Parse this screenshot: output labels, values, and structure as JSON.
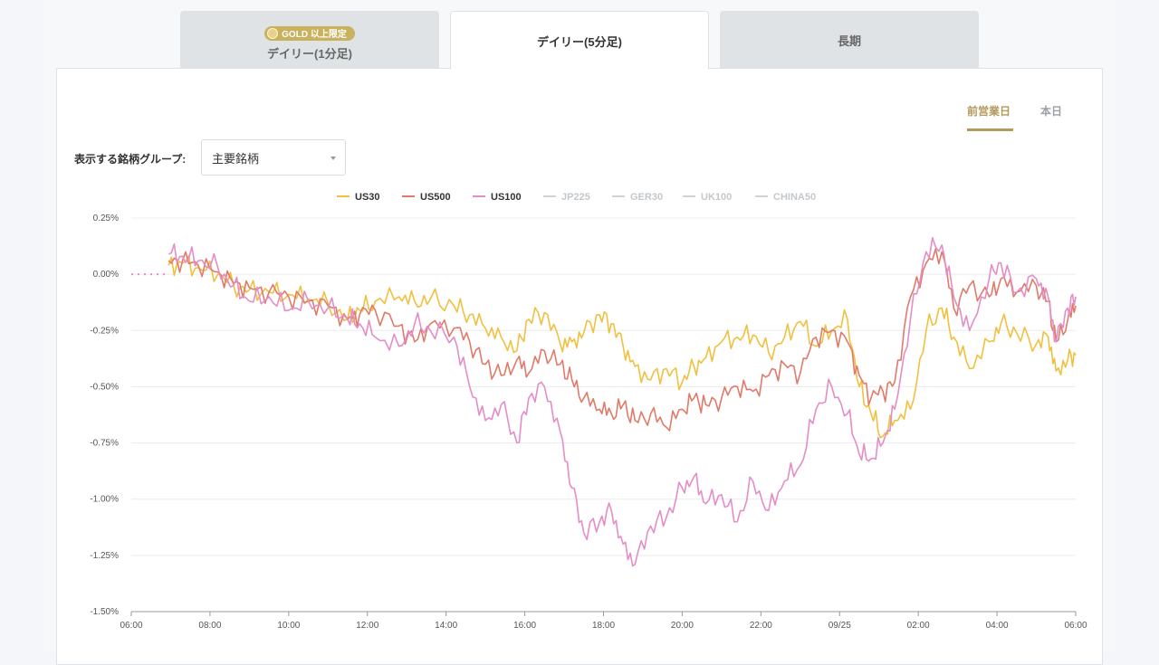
{
  "tabs": [
    {
      "label": "デイリー(1分足)",
      "badge": "GOLD 以上限定",
      "active": false
    },
    {
      "label": "デイリー(5分足)",
      "active": true
    },
    {
      "label": "長期",
      "active": false
    }
  ],
  "day_toggle": {
    "previous": "前営業日",
    "today": "本日",
    "selected": "previous"
  },
  "group_select": {
    "label": "表示する銘柄グループ:",
    "value": "主要銘柄"
  },
  "colors": {
    "gold": "#c9b15d",
    "accent": "#b3995a"
  },
  "chart_data": {
    "type": "line",
    "legend_position": "top",
    "grid": true,
    "ylim": [
      -1.5,
      0.25
    ],
    "yticks": [
      "0.25%",
      "0.00%",
      "-0.25%",
      "-0.50%",
      "-0.75%",
      "-1.00%",
      "-1.25%",
      "-1.50%"
    ],
    "ytick_values": [
      0.25,
      0,
      -0.25,
      -0.5,
      -0.75,
      -1.0,
      -1.25,
      -1.5
    ],
    "xticks": [
      "06:00",
      "08:00",
      "10:00",
      "12:00",
      "14:00",
      "16:00",
      "18:00",
      "20:00",
      "22:00",
      "09/25",
      "02:00",
      "04:00",
      "06:00"
    ],
    "xlim": [
      0,
      24
    ],
    "series": [
      {
        "name": "US30",
        "color": "#f0c040",
        "visible": true,
        "x": [
          0.95,
          1.3,
          1.7,
          2.2,
          2.6,
          3.0,
          3.5,
          4.0,
          4.5,
          5.0,
          5.5,
          5.8,
          6.2,
          6.8,
          7.2,
          7.6,
          8.2,
          8.6,
          9.0,
          9.4,
          9.8,
          10.1,
          10.5,
          10.9,
          11.2,
          11.5,
          11.9,
          12.2,
          12.5,
          12.8,
          13.2,
          13.6,
          14.0,
          14.3,
          14.6,
          15.0,
          15.4,
          15.8,
          16.2,
          16.6,
          17.0,
          17.4,
          17.8,
          18.2,
          18.5,
          18.8,
          19.1,
          19.4,
          19.8,
          20.2,
          20.6,
          20.9,
          21.3,
          21.8,
          22.1,
          22.5,
          23.0,
          23.3,
          23.5,
          23.8,
          24.0
        ],
        "y": [
          0.04,
          0.05,
          0.03,
          0.0,
          -0.05,
          -0.07,
          -0.08,
          -0.09,
          -0.11,
          -0.13,
          -0.2,
          -0.16,
          -0.12,
          -0.1,
          -0.12,
          -0.11,
          -0.14,
          -0.18,
          -0.24,
          -0.28,
          -0.34,
          -0.2,
          -0.17,
          -0.31,
          -0.3,
          -0.26,
          -0.18,
          -0.22,
          -0.32,
          -0.41,
          -0.47,
          -0.42,
          -0.48,
          -0.41,
          -0.37,
          -0.3,
          -0.28,
          -0.27,
          -0.35,
          -0.28,
          -0.21,
          -0.32,
          -0.25,
          -0.2,
          -0.5,
          -0.62,
          -0.72,
          -0.65,
          -0.6,
          -0.25,
          -0.15,
          -0.28,
          -0.42,
          -0.3,
          -0.22,
          -0.26,
          -0.31,
          -0.28,
          -0.43,
          -0.38,
          -0.36
        ]
      },
      {
        "name": "US500",
        "color": "#e07b6a",
        "visible": true,
        "x": [
          0.95,
          1.3,
          1.7,
          2.2,
          2.6,
          3.0,
          3.5,
          4.0,
          4.5,
          5.0,
          5.5,
          5.8,
          6.2,
          6.8,
          7.2,
          7.6,
          8.2,
          8.6,
          9.0,
          9.4,
          9.8,
          10.1,
          10.5,
          10.9,
          11.2,
          11.5,
          11.9,
          12.2,
          12.5,
          12.8,
          13.2,
          13.6,
          14.0,
          14.3,
          14.6,
          15.0,
          15.4,
          15.8,
          16.2,
          16.6,
          17.0,
          17.4,
          17.8,
          18.2,
          18.5,
          18.8,
          19.1,
          19.4,
          19.8,
          20.2,
          20.6,
          20.9,
          21.3,
          21.8,
          22.1,
          22.5,
          23.0,
          23.3,
          23.5,
          23.8,
          24.0
        ],
        "y": [
          0.06,
          0.06,
          0.04,
          0.01,
          -0.04,
          -0.06,
          -0.08,
          -0.1,
          -0.12,
          -0.14,
          -0.2,
          -0.18,
          -0.16,
          -0.23,
          -0.3,
          -0.22,
          -0.24,
          -0.3,
          -0.4,
          -0.45,
          -0.38,
          -0.44,
          -0.34,
          -0.4,
          -0.47,
          -0.55,
          -0.6,
          -0.62,
          -0.58,
          -0.65,
          -0.62,
          -0.68,
          -0.6,
          -0.55,
          -0.58,
          -0.55,
          -0.5,
          -0.52,
          -0.45,
          -0.4,
          -0.44,
          -0.28,
          -0.25,
          -0.3,
          -0.45,
          -0.55,
          -0.52,
          -0.48,
          -0.1,
          0.05,
          0.1,
          -0.15,
          -0.05,
          -0.1,
          -0.02,
          -0.08,
          -0.05,
          -0.12,
          -0.3,
          -0.2,
          -0.14
        ]
      },
      {
        "name": "US100",
        "color": "#e48dc6",
        "visible": true,
        "x": [
          0.95,
          1.3,
          1.7,
          2.2,
          2.6,
          3.0,
          3.5,
          4.0,
          4.5,
          5.0,
          5.5,
          5.8,
          6.2,
          6.8,
          7.2,
          7.6,
          8.2,
          8.6,
          9.0,
          9.4,
          9.8,
          10.1,
          10.5,
          10.9,
          11.2,
          11.5,
          11.9,
          12.2,
          12.5,
          12.8,
          13.2,
          13.6,
          14.0,
          14.3,
          14.6,
          15.0,
          15.4,
          15.8,
          16.2,
          16.6,
          17.0,
          17.4,
          17.8,
          18.2,
          18.5,
          18.8,
          19.1,
          19.4,
          19.8,
          20.2,
          20.6,
          20.9,
          21.3,
          21.8,
          22.1,
          22.5,
          23.0,
          23.3,
          23.5,
          23.8,
          24.0
        ],
        "y": [
          0.09,
          0.08,
          0.06,
          0.03,
          -0.05,
          -0.12,
          -0.1,
          -0.16,
          -0.12,
          -0.15,
          -0.2,
          -0.22,
          -0.28,
          -0.32,
          -0.22,
          -0.25,
          -0.28,
          -0.5,
          -0.65,
          -0.58,
          -0.75,
          -0.55,
          -0.5,
          -0.7,
          -0.95,
          -1.15,
          -1.1,
          -1.05,
          -1.2,
          -1.29,
          -1.12,
          -1.08,
          -0.95,
          -0.9,
          -1.02,
          -0.98,
          -1.1,
          -0.92,
          -1.05,
          -0.92,
          -0.85,
          -0.6,
          -0.5,
          -0.62,
          -0.8,
          -0.82,
          -0.75,
          -0.6,
          -0.2,
          0.1,
          0.13,
          -0.1,
          -0.25,
          -0.02,
          0.05,
          -0.08,
          -0.02,
          -0.1,
          -0.3,
          -0.15,
          -0.1
        ]
      },
      {
        "name": "JP225",
        "color": "#c8ccd0",
        "visible": false,
        "x": [],
        "y": []
      },
      {
        "name": "GER30",
        "color": "#c8ccd0",
        "visible": false,
        "x": [],
        "y": []
      },
      {
        "name": "UK100",
        "color": "#c8ccd0",
        "visible": false,
        "x": [],
        "y": []
      },
      {
        "name": "CHINA50",
        "color": "#c8ccd0",
        "visible": false,
        "x": [],
        "y": []
      }
    ]
  }
}
